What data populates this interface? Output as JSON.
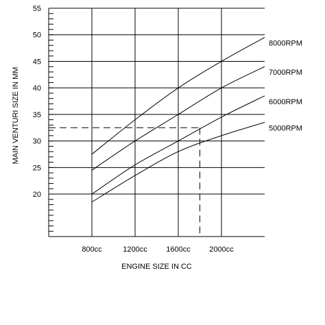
{
  "chart_data": {
    "type": "line",
    "xlabel": "ENGINE SIZE IN CC",
    "ylabel": "MAIN VENTURI SIZE IN MM",
    "xlim": [
      400,
      2400
    ],
    "ylim": [
      12,
      55
    ],
    "grid": true,
    "x_ticks": [
      {
        "value": 800,
        "label": "800cc"
      },
      {
        "value": 1200,
        "label": "1200cc"
      },
      {
        "value": 1600,
        "label": "1600cc"
      },
      {
        "value": 2000,
        "label": "2000cc"
      }
    ],
    "y_ticks": [
      {
        "value": 55,
        "label": "55"
      },
      {
        "value": 50,
        "label": "50"
      },
      {
        "value": 45,
        "label": "45"
      },
      {
        "value": 40,
        "label": "40"
      },
      {
        "value": 35,
        "label": "35"
      },
      {
        "value": 30,
        "label": "30"
      },
      {
        "value": 25,
        "label": "25"
      },
      {
        "value": 20,
        "label": "20"
      }
    ],
    "series": [
      {
        "name": "8000RPM",
        "x": [
          800,
          1200,
          1600,
          2000,
          2400
        ],
        "y": [
          27.5,
          34,
          40,
          45,
          49.5
        ]
      },
      {
        "name": "7000RPM",
        "x": [
          800,
          1200,
          1600,
          2000,
          2400
        ],
        "y": [
          24.5,
          30,
          35,
          40,
          44
        ]
      },
      {
        "name": "6000RPM",
        "x": [
          800,
          1200,
          1600,
          2000,
          2400
        ],
        "y": [
          20,
          25.5,
          30,
          34.5,
          38.5
        ]
      },
      {
        "name": "5000RPM",
        "x": [
          800,
          1200,
          1600,
          2000,
          2400
        ],
        "y": [
          18.5,
          23.5,
          28,
          31,
          33.5
        ]
      }
    ],
    "reference": {
      "x": 1800,
      "y": 32.5
    }
  }
}
